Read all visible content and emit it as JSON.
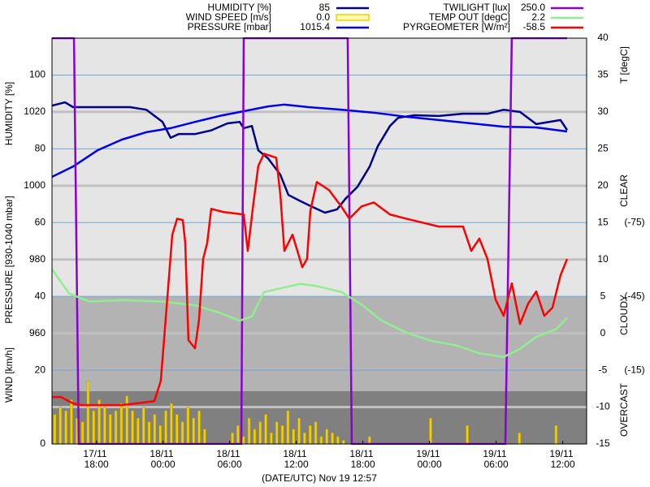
{
  "chart_data": {
    "type": "line",
    "x_label": "(DATE/UTC) Nov 19 12:57",
    "axis_labels": {
      "humidity": "HUMIDITY [%]",
      "pressure": "PRESSURE [930-1040 mbar]",
      "wind": "WIND [km/h]",
      "temp": "T [degC]"
    },
    "annotations": [
      "CLEAR",
      "CLOUDY",
      "OVERCAST"
    ],
    "xlim": [
      14,
      62.15
    ],
    "xticks": [
      {
        "value": 18,
        "label": "17/11 18:00"
      },
      {
        "value": 24,
        "label": "18/11 00:00"
      },
      {
        "value": 30,
        "label": "18/11 06:00"
      },
      {
        "value": 36,
        "label": "18/11 12:00"
      },
      {
        "value": 42,
        "label": "18/11 18:00"
      },
      {
        "value": 48,
        "label": "19/11 00:00"
      },
      {
        "value": 54,
        "label": "19/11 06:00"
      },
      {
        "value": 60,
        "label": "19/11 12:00"
      }
    ],
    "ylim": [
      0,
      110
    ],
    "yticks": [
      0,
      20,
      40,
      60,
      80,
      100
    ],
    "y2lim": [
      -15,
      40
    ],
    "y2ticks": [
      40,
      35,
      30,
      25,
      20,
      15,
      10,
      5,
      0,
      -5,
      -10,
      -15
    ],
    "y3lim": [
      930,
      1040
    ],
    "y3ticks": [
      960,
      980,
      1000,
      1020
    ],
    "y4lim": [
      15,
      -150
    ],
    "y4ticks": [
      {
        "value": -75,
        "label": "(-75)"
      },
      {
        "value": -45,
        "label": "(-45)"
      },
      {
        "value": -15,
        "label": "(-15)"
      }
    ],
    "y5lim": [
      0,
      250
    ],
    "bands": [
      {
        "from": 40,
        "to": 110,
        "color": "#e5e5e5"
      },
      {
        "from": 14.3,
        "to": 40,
        "color": "#b3b3b3"
      },
      {
        "from": 0,
        "to": 14.3,
        "color": "#808080"
      }
    ],
    "grid": true,
    "series": [
      {
        "name": "HUMIDITY [%]",
        "current": 85,
        "color": "#00008b",
        "axis": "y",
        "x": [
          14,
          15.17,
          15.9,
          16.63,
          18.1,
          19.56,
          21.02,
          22.49,
          23.95,
          24.68,
          25.41,
          26.88,
          28.34,
          29.8,
          30.9,
          31.27,
          32.0,
          32.58,
          33.46,
          34.56,
          35.29,
          36.39,
          37.49,
          38.58,
          39.68,
          40.41,
          41.51,
          42.61,
          43.34,
          44.44,
          45.17,
          46.63,
          48.83,
          51.02,
          53.22,
          54.68,
          56.15,
          57.61,
          59.8,
          60.39
        ],
        "values": [
          91.7,
          92.6,
          91.3,
          91.3,
          91.3,
          91.3,
          91.3,
          90.6,
          87.3,
          83,
          84,
          84,
          85,
          86.9,
          87.3,
          85.6,
          86.2,
          79.6,
          77.4,
          73,
          67.5,
          65.8,
          64.2,
          62.7,
          63.6,
          66.4,
          69.7,
          75.2,
          80.7,
          86.2,
          88.4,
          89.1,
          88.9,
          89.5,
          89.5,
          90.6,
          90,
          86.7,
          87.8,
          85.1
        ]
      },
      {
        "name": "WIND SPEED [m/s]",
        "current": 0,
        "current_label": "0.0",
        "color": "#f2d000",
        "axis": "y",
        "type": "bar",
        "x": [
          14.25,
          14.75,
          15.25,
          15.75,
          16.25,
          16.75,
          17.25,
          17.75,
          18.25,
          18.75,
          19.25,
          19.75,
          20.25,
          20.75,
          21.25,
          21.75,
          22.25,
          22.75,
          23.25,
          23.75,
          24.25,
          24.75,
          25.25,
          25.75,
          26.25,
          26.75,
          27.25,
          27.75,
          30.25,
          30.75,
          31.25,
          31.75,
          32.25,
          32.75,
          33.25,
          33.75,
          34.25,
          34.75,
          35.25,
          35.75,
          36.25,
          36.75,
          37.25,
          37.75,
          38.25,
          38.75,
          39.25,
          39.75,
          40.25,
          42.6,
          48.1,
          51.4,
          56.1,
          59.4
        ],
        "values": [
          8,
          10,
          9,
          12,
          7,
          6,
          17,
          9,
          12,
          10,
          8,
          9,
          11,
          13,
          9,
          7,
          10,
          6,
          8,
          5,
          9,
          11,
          8,
          6,
          10,
          7,
          9,
          4,
          3,
          5,
          2,
          7,
          4,
          6,
          8,
          3,
          6,
          5,
          9,
          4,
          7,
          3,
          5,
          6,
          2,
          4,
          3,
          2,
          1,
          2,
          7,
          5,
          3,
          5
        ]
      },
      {
        "name": "PRESSURE [mbar]",
        "current": 1015.4,
        "color": "#0000e6",
        "axis": "y3",
        "x": [
          14,
          15.9,
          18.1,
          20.29,
          22.49,
          24.68,
          26.88,
          29.07,
          31.27,
          33.46,
          34.93,
          37.12,
          40.05,
          42.98,
          45.9,
          48.83,
          51.76,
          54.68,
          57.61,
          60.39
        ],
        "values": [
          1002.4,
          1005.2,
          1009.6,
          1012.5,
          1014.5,
          1015.6,
          1017.3,
          1018.9,
          1020.2,
          1021.5,
          1022,
          1021.3,
          1020.6,
          1019.8,
          1018.7,
          1017.8,
          1016.9,
          1016,
          1015.8,
          1014.7
        ]
      },
      {
        "name": "TWILIGHT [lux]",
        "current": 250,
        "current_label": "250.0",
        "color": "#8b00d0",
        "axis": "y5",
        "x": [
          14,
          15.98,
          16.41,
          31.05,
          31.27,
          40.63,
          41.0,
          54.83,
          55.41,
          60.39
        ],
        "values": [
          250,
          250,
          0,
          0,
          250,
          250,
          0,
          0,
          250,
          250
        ]
      },
      {
        "name": "TEMP OUT [degC]",
        "current": 2.2,
        "color": "#90ee90",
        "axis": "y2",
        "x": [
          14,
          15.54,
          17.37,
          20.29,
          23.95,
          26.88,
          29.07,
          30.9,
          32.0,
          33.1,
          34.56,
          36.39,
          37.85,
          40.05,
          41.88,
          43.71,
          45.9,
          48.1,
          50.29,
          52.49,
          54.68,
          56.15,
          57.61,
          59.44,
          60.39
        ],
        "values": [
          8.7,
          5.4,
          4.3,
          4.5,
          4.3,
          3.8,
          2.8,
          1.7,
          2.3,
          5.6,
          6.1,
          6.7,
          6.4,
          5.6,
          3.9,
          1.7,
          0.1,
          -1.0,
          -1.6,
          -2.7,
          -3.2,
          -2.1,
          -0.5,
          0.6,
          2.1
        ]
      },
      {
        "name": "PYRGEOMETER [W/m²]",
        "current": -58.5,
        "color": "#ff0000",
        "axis": "y4",
        "x": [
          14,
          14.8,
          15.9,
          16.63,
          20.29,
          23.22,
          23.8,
          24.32,
          24.83,
          25.27,
          25.78,
          26.0,
          26.29,
          26.88,
          27.24,
          27.61,
          27.98,
          28.34,
          29.44,
          31.27,
          31.63,
          32.15,
          32.58,
          33.1,
          34.19,
          34.56,
          34.93,
          35.66,
          36.54,
          36.97,
          37.27,
          37.85,
          38.95,
          40.05,
          40.78,
          41.88,
          42.98,
          44.44,
          45.9,
          48.83,
          51.02,
          51.76,
          52.49,
          53.22,
          53.95,
          54.68,
          55.41,
          56.15,
          56.88,
          57.61,
          58.34,
          59.07,
          59.8,
          60.39
        ],
        "values": [
          -4.1,
          -4.1,
          -1.5,
          -0.8,
          -0.8,
          -2.4,
          -10.7,
          -40.4,
          -70,
          -76.6,
          -76,
          -66.8,
          -27.2,
          -23.9,
          -35.4,
          -60.2,
          -66.8,
          -80.6,
          -79.3,
          -78.3,
          -63.5,
          -83.2,
          -98.1,
          -103,
          -101.4,
          -86.5,
          -63.5,
          -70.1,
          -56.9,
          -60.2,
          -79.9,
          -91.5,
          -88.2,
          -81.6,
          -76.6,
          -81.6,
          -83.2,
          -78.3,
          -76.6,
          -73.4,
          -73.4,
          -63.5,
          -68.5,
          -60.2,
          -43.7,
          -37.1,
          -50.3,
          -33.8,
          -42,
          -47,
          -37.1,
          -40.4,
          -53.6,
          -60.2
        ]
      }
    ]
  }
}
